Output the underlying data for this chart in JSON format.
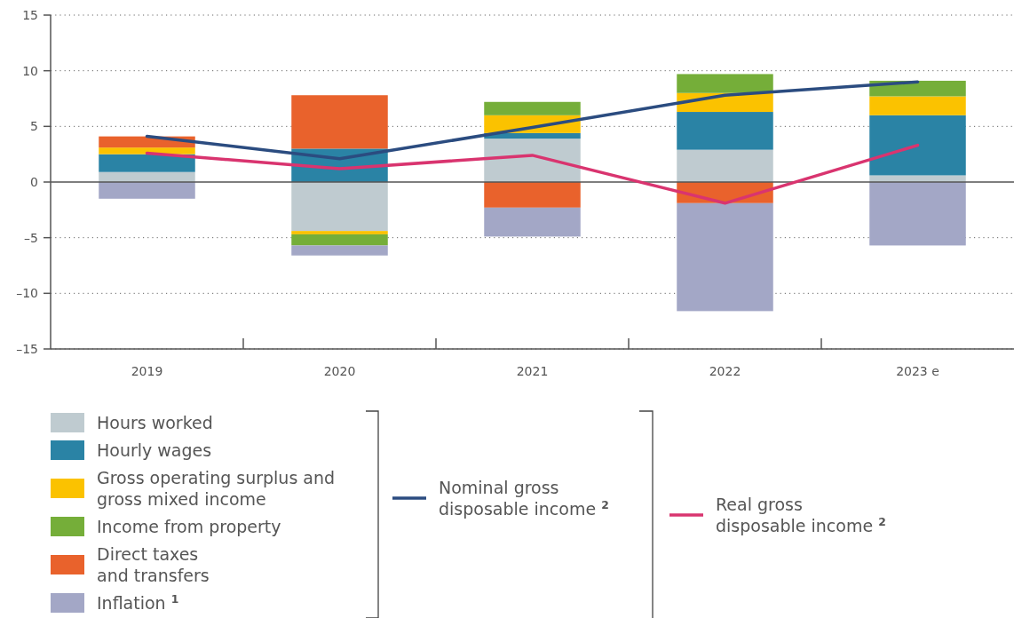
{
  "chart_data": {
    "type": "bar",
    "stacked": true,
    "categories": [
      "2019",
      "2020",
      "2021",
      "2022",
      "2023 e"
    ],
    "series": [
      {
        "name": "Hours worked",
        "color": "#bfcbd0",
        "values": [
          0.9,
          -4.4,
          3.9,
          2.9,
          0.6
        ]
      },
      {
        "name": "Hourly wages",
        "color": "#2a83a5",
        "values": [
          1.6,
          3.0,
          0.5,
          3.4,
          5.4
        ]
      },
      {
        "name": "Gross operating surplus and\ngross mixed income",
        "color": "#fbc200",
        "values": [
          0.6,
          -0.3,
          1.6,
          1.7,
          1.7
        ]
      },
      {
        "name": "Income from property",
        "color": "#75ae39",
        "values": [
          0,
          -1.0,
          1.2,
          1.7,
          1.4
        ]
      },
      {
        "name": "Direct taxes\nand transfers",
        "color": "#e9622c",
        "values": [
          1.0,
          4.8,
          -2.3,
          -1.9,
          0
        ]
      },
      {
        "name": "Inflation $^{1}$",
        "color": "#a3a7c6",
        "values": [
          -1.5,
          -0.9,
          -2.6,
          -9.7,
          -5.7
        ]
      },
      {
        "name": "Nominal gross\ndisposable income $^{2}$",
        "type": "line",
        "color": "#2b4c80",
        "values": [
          4.1,
          2.1,
          4.9,
          7.8,
          9.0
        ]
      },
      {
        "name": "Real gross\ndisposable income $^{2}$",
        "type": "line",
        "color": "#d9346f",
        "values": [
          2.6,
          1.2,
          2.4,
          -1.9,
          3.3
        ]
      }
    ],
    "ylim": [
      -15,
      15
    ],
    "yticks": [
      {
        "value": -15,
        "label": "–15"
      },
      {
        "value": -10,
        "label": "–10"
      },
      {
        "value": -5,
        "label": "–5"
      },
      0,
      5,
      10,
      15
    ],
    "grid": "y",
    "legend": "bottom"
  }
}
